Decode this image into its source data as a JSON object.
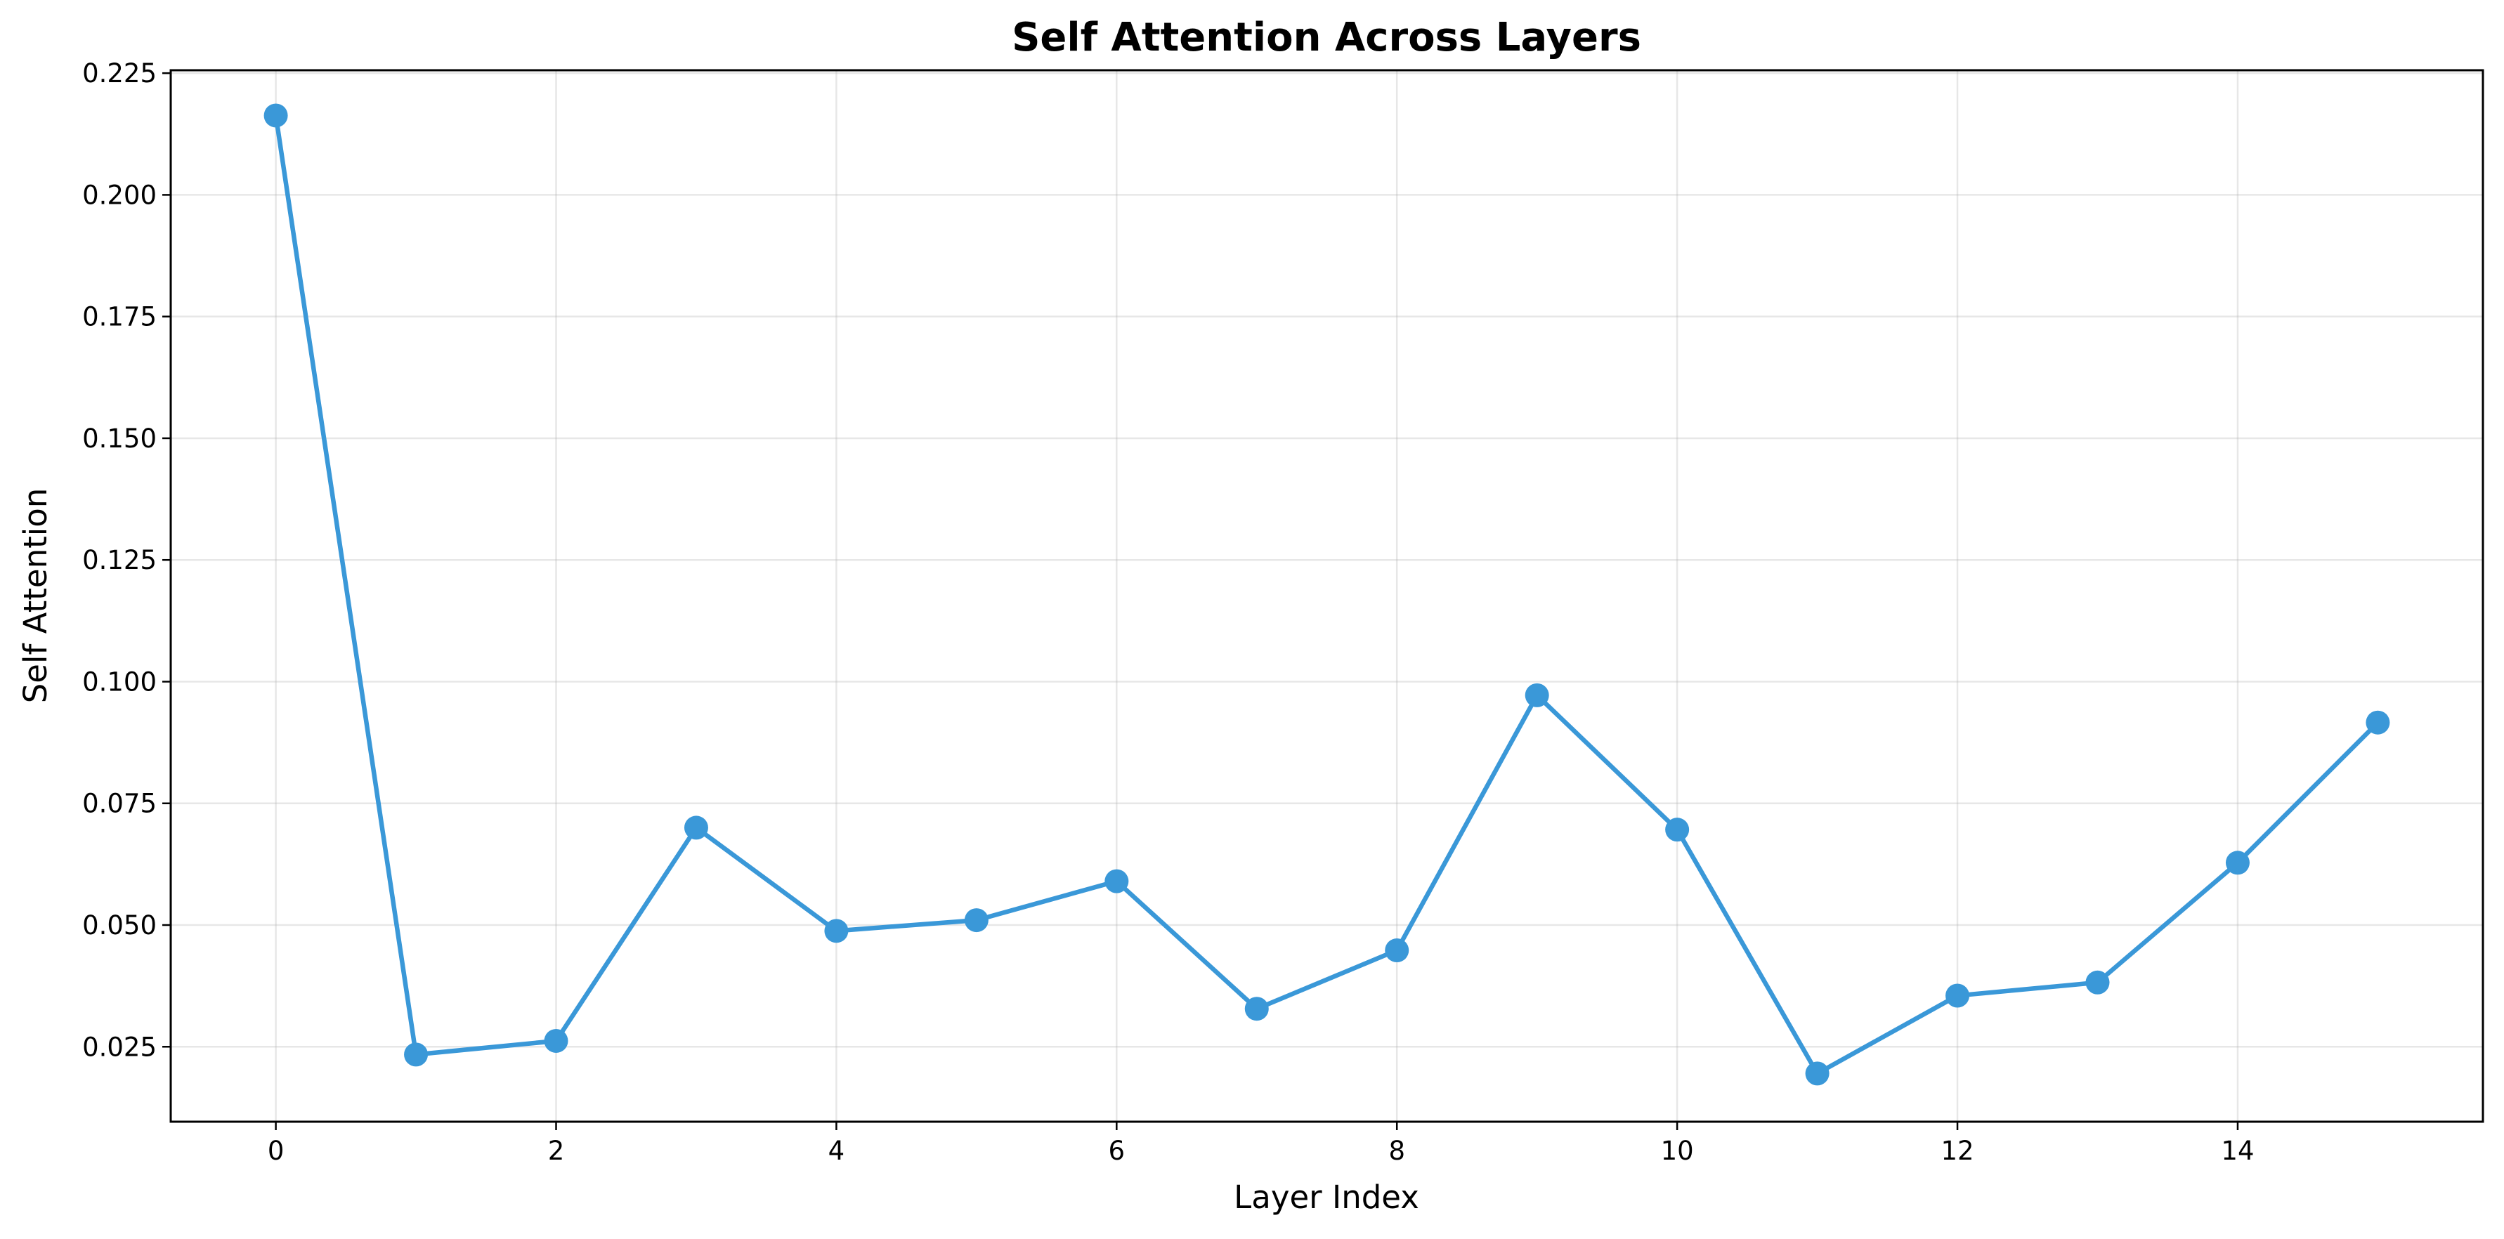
{
  "chart_data": {
    "type": "line",
    "title": "Self Attention Across Layers",
    "xlabel": "Layer Index",
    "ylabel": "Self Attention",
    "xlim": [
      -0.75,
      15.75
    ],
    "ylim": [
      0.0096,
      0.2256
    ],
    "xticks": [
      0,
      2,
      4,
      6,
      8,
      10,
      12,
      14
    ],
    "yticks": [
      0.025,
      0.05,
      0.075,
      0.1,
      0.125,
      0.15,
      0.175,
      0.2,
      0.225
    ],
    "ytick_labels": [
      "0.025",
      "0.050",
      "0.075",
      "0.100",
      "0.125",
      "0.150",
      "0.175",
      "0.200",
      "0.225"
    ],
    "grid": true,
    "legend": "none",
    "series": [
      {
        "color": "#3a98d8",
        "marker": "circle",
        "x": [
          0,
          1,
          2,
          3,
          4,
          5,
          6,
          7,
          8,
          9,
          10,
          11,
          12,
          13,
          14,
          15
        ],
        "y": [
          0.2163,
          0.0234,
          0.0262,
          0.07,
          0.0488,
          0.051,
          0.059,
          0.0328,
          0.0448,
          0.0972,
          0.0696,
          0.0195,
          0.0355,
          0.0382,
          0.0628,
          0.0916
        ]
      }
    ]
  }
}
